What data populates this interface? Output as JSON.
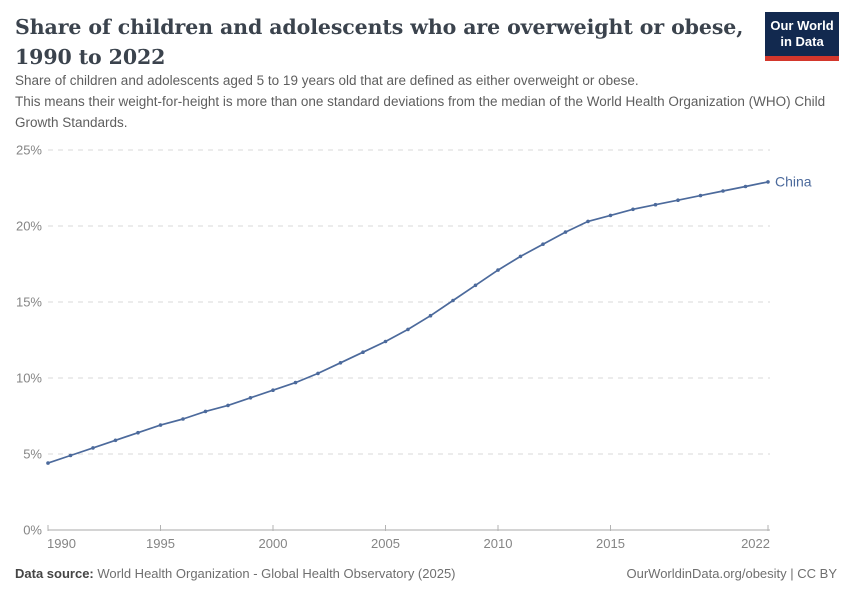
{
  "header": {
    "title": "Share of children and adolescents who are overweight or obese, 1990 to 2022",
    "subtitle_line1": "Share of children and adolescents aged 5 to 19 years old that are defined as either overweight or obese.",
    "subtitle_line2": "This means their weight-for-height is more than one standard deviations from the median of the World Health Organization (WHO) Child Growth Standards.",
    "logo": {
      "line1": "Our World",
      "line2": "in Data"
    }
  },
  "chart_data": {
    "type": "line",
    "title": "Share of children and adolescents who are overweight or obese, 1990 to 2022",
    "x": [
      1990,
      1991,
      1992,
      1993,
      1994,
      1995,
      1996,
      1997,
      1998,
      1999,
      2000,
      2001,
      2002,
      2003,
      2004,
      2005,
      2006,
      2007,
      2008,
      2009,
      2010,
      2011,
      2012,
      2013,
      2014,
      2015,
      2016,
      2017,
      2018,
      2019,
      2020,
      2021,
      2022
    ],
    "series": [
      {
        "name": "China",
        "color": "#4c6a9c",
        "values": [
          4.4,
          4.9,
          5.4,
          5.9,
          6.4,
          6.9,
          7.3,
          7.8,
          8.2,
          8.7,
          9.2,
          9.7,
          10.3,
          11.0,
          11.7,
          12.4,
          13.2,
          14.1,
          15.1,
          16.1,
          17.1,
          18.0,
          18.8,
          19.6,
          20.3,
          20.7,
          21.1,
          21.4,
          21.7,
          22.0,
          22.3,
          22.6,
          22.9
        ]
      }
    ],
    "xlim": [
      1990,
      2022
    ],
    "ylim": [
      0,
      25
    ],
    "xticks": [
      1990,
      1995,
      2000,
      2005,
      2010,
      2015,
      2022
    ],
    "yticks": [
      0,
      5,
      10,
      15,
      20,
      25
    ],
    "ytick_suffix": "%",
    "grid": "horizontal-dashed",
    "legend_position": "end-of-line-label",
    "xlabel": "",
    "ylabel": ""
  },
  "footer": {
    "datasource_label": "Data source:",
    "datasource_value": " World Health Organization - Global Health Observatory (2025)",
    "credit": "OurWorldinData.org/obesity | CC BY"
  },
  "colors": {
    "line": "#4c6a9c",
    "series_label": "#4c6a9c",
    "grid": "#d9d9d9",
    "axis": "#a8a8a8",
    "tick": "#b3b3b3",
    "tick_text": "#858585",
    "logo_bg": "#12294f",
    "logo_bar": "#d3372c",
    "title_text": "#3b434d"
  }
}
